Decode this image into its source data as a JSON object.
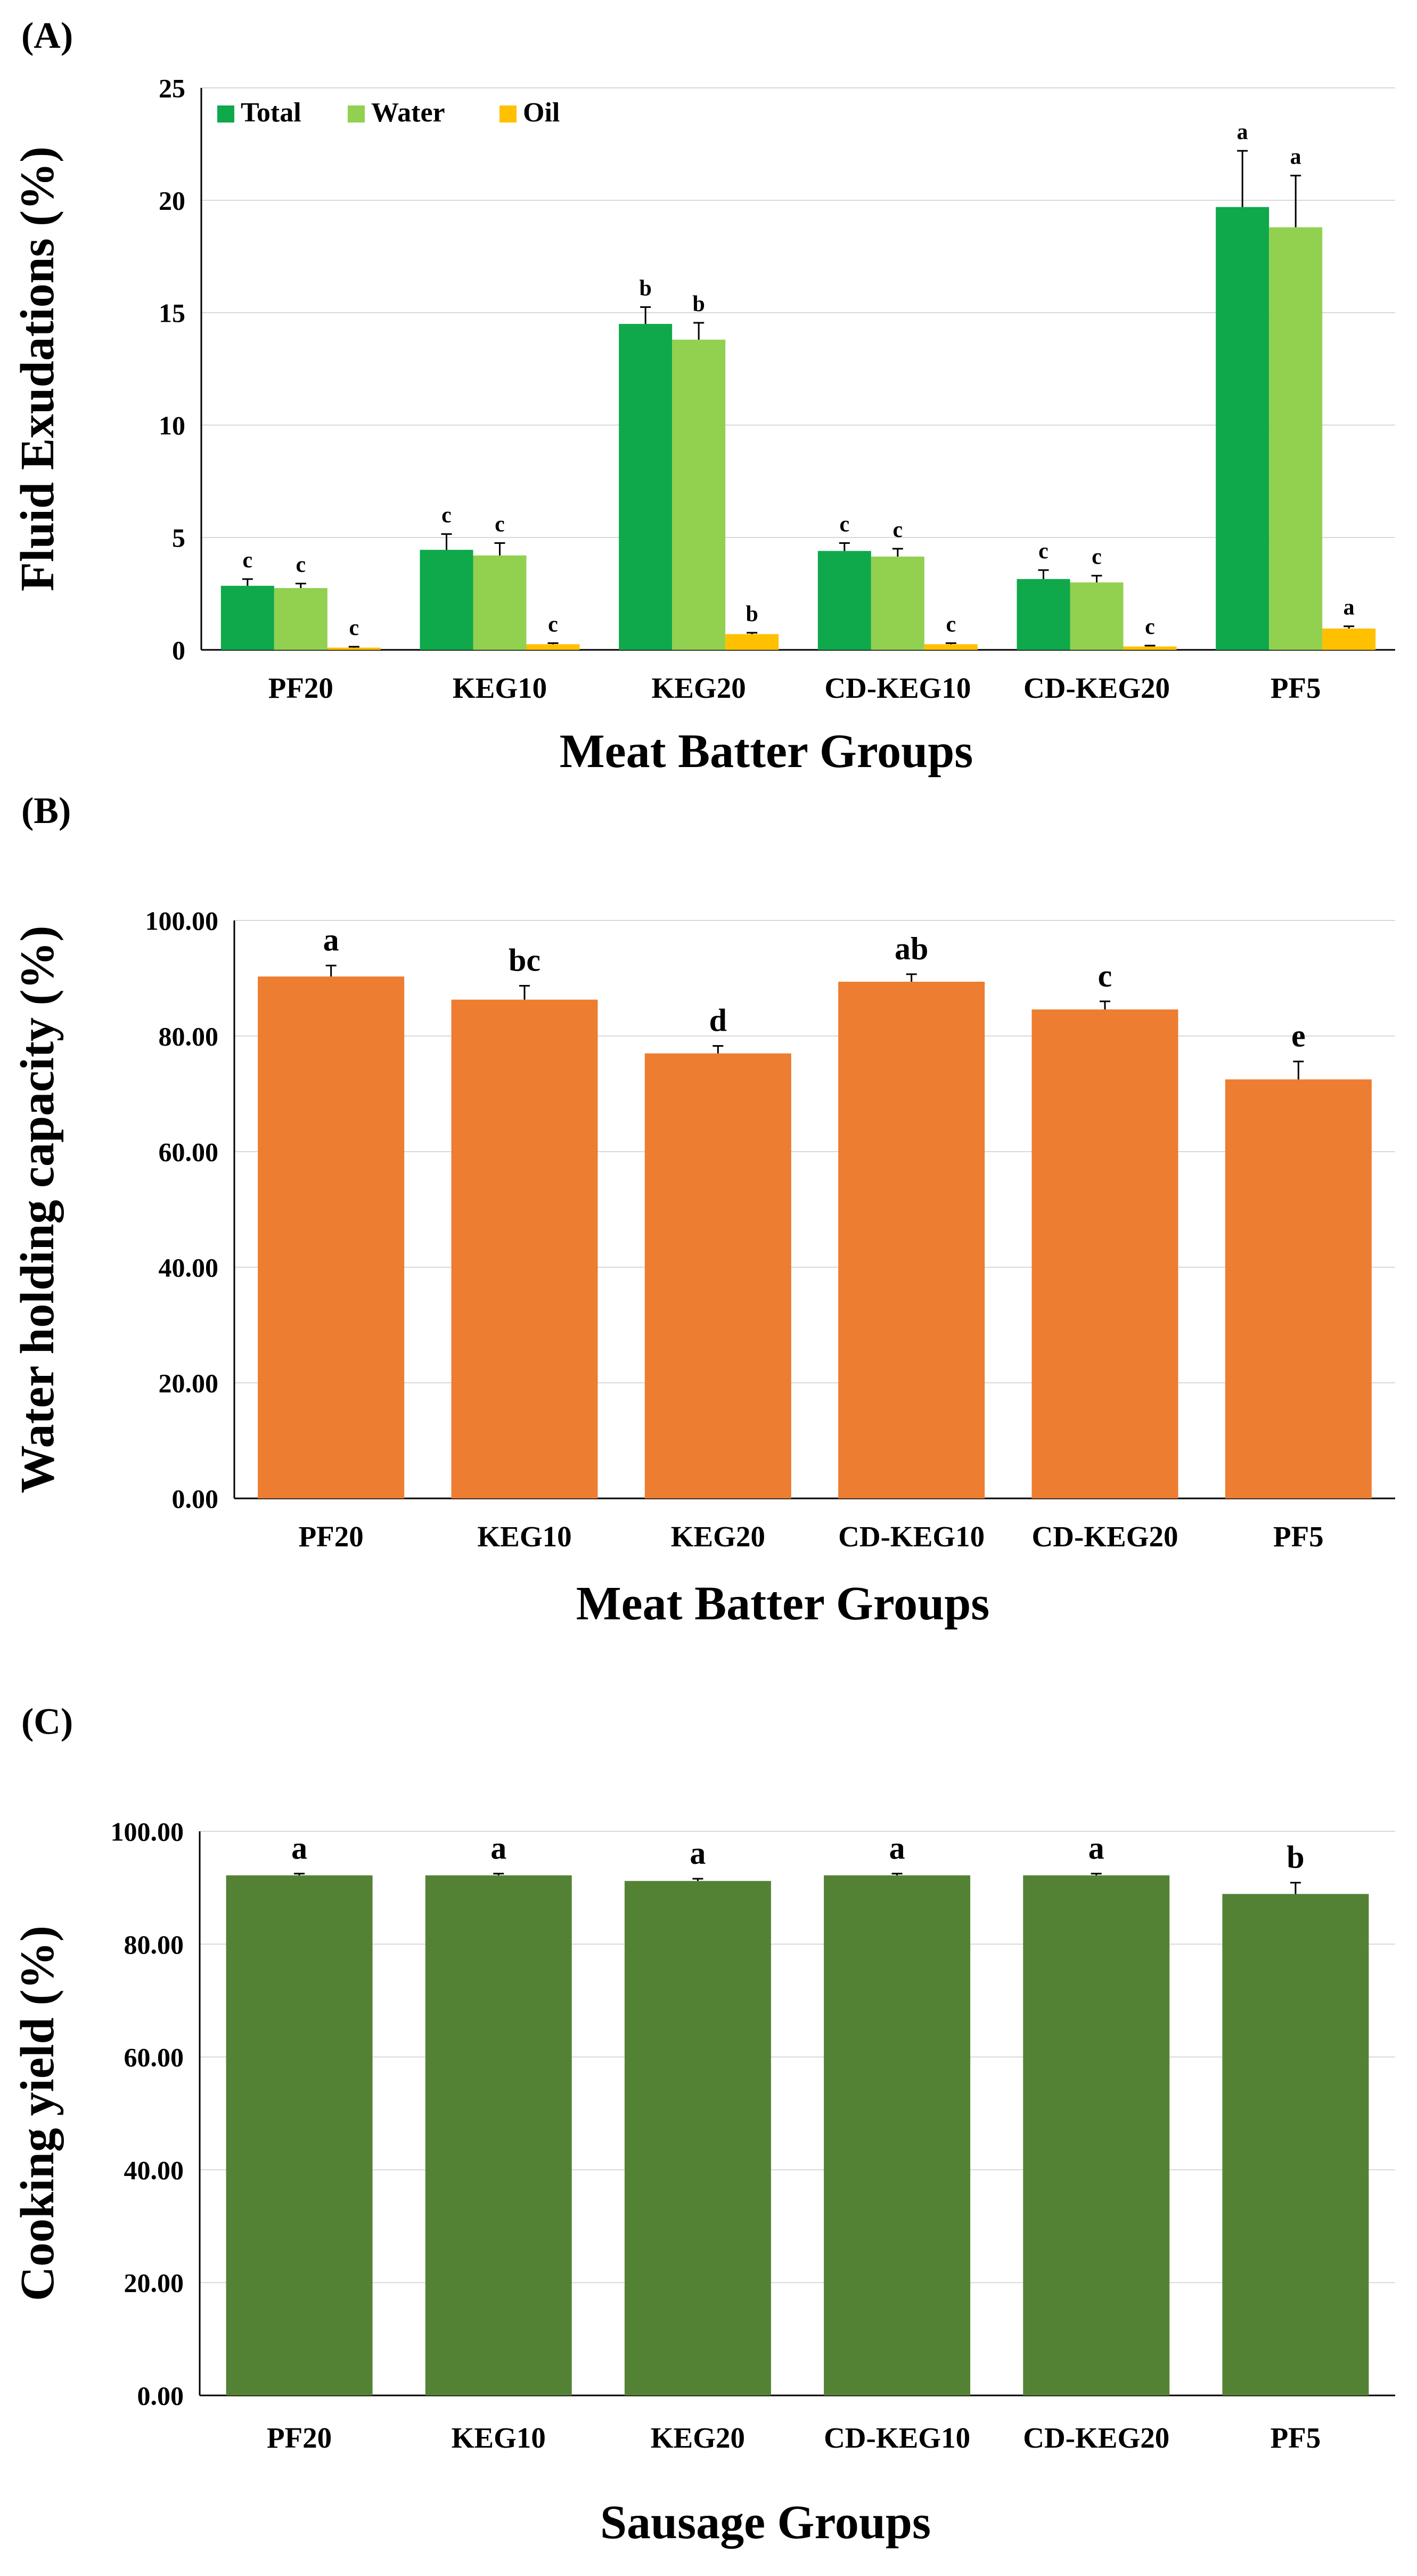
{
  "figure": {
    "panels": [
      {
        "label": "(A)"
      },
      {
        "label": "(B)"
      },
      {
        "label": "(C)"
      }
    ]
  },
  "chart_data": [
    {
      "panel": "(A)",
      "type": "bar",
      "title": "",
      "xlabel": "Meat Batter Groups",
      "ylabel": "Fluid Exudations (%)",
      "ylim": [
        0,
        25
      ],
      "yticks": [
        "0",
        "5",
        "10",
        "15",
        "20",
        "25"
      ],
      "categories": [
        "PF20",
        "KEG10",
        "KEG20",
        "CD-KEG10",
        "CD-KEG20",
        "PF5"
      ],
      "legend": {
        "placement": "top-left",
        "entries": [
          "Total",
          "Water",
          "Oil"
        ]
      },
      "gridlines": true,
      "series": [
        {
          "name": "Total",
          "color": "#0fa84b",
          "values": [
            2.85,
            4.45,
            14.5,
            4.4,
            3.15,
            19.7
          ],
          "errors": [
            0.3,
            0.7,
            0.75,
            0.35,
            0.4,
            2.5
          ],
          "labels": [
            "c",
            "c",
            "b",
            "c",
            "c",
            "a"
          ]
        },
        {
          "name": "Water",
          "color": "#92d050",
          "values": [
            2.75,
            4.2,
            13.8,
            4.15,
            3.0,
            18.8
          ],
          "errors": [
            0.2,
            0.55,
            0.75,
            0.35,
            0.3,
            2.3
          ],
          "labels": [
            "c",
            "c",
            "b",
            "c",
            "c",
            "a"
          ]
        },
        {
          "name": "Oil",
          "color": "#ffc000",
          "values": [
            0.1,
            0.25,
            0.7,
            0.25,
            0.15,
            0.95
          ],
          "errors": [
            0.04,
            0.05,
            0.06,
            0.05,
            0.04,
            0.1
          ],
          "labels": [
            "c",
            "c",
            "b",
            "c",
            "c",
            "a"
          ]
        }
      ]
    },
    {
      "panel": "(B)",
      "type": "bar",
      "title": "",
      "xlabel": "Meat Batter Groups",
      "ylabel": "Water holding capacity (%)",
      "ylim": [
        0,
        100
      ],
      "yticks": [
        "0.00",
        "20.00",
        "40.00",
        "60.00",
        "80.00",
        "100.00"
      ],
      "categories": [
        "PF20",
        "KEG10",
        "KEG20",
        "CD-KEG10",
        "CD-KEG20",
        "PF5"
      ],
      "gridlines": true,
      "series": [
        {
          "name": "Water holding capacity",
          "color": "#ed7d31",
          "values": [
            90.3,
            86.3,
            77.0,
            89.4,
            84.6,
            72.5
          ],
          "errors": [
            1.9,
            2.4,
            1.3,
            1.3,
            1.4,
            3.1
          ],
          "labels": [
            "a",
            "bc",
            "d",
            "ab",
            "c",
            "e"
          ]
        }
      ]
    },
    {
      "panel": "(C)",
      "type": "bar",
      "title": "",
      "xlabel": "Sausage Groups",
      "ylabel": "Cooking yield (%)",
      "ylim": [
        0,
        100
      ],
      "yticks": [
        "0.00",
        "20.00",
        "40.00",
        "60.00",
        "80.00",
        "100.00"
      ],
      "categories": [
        "PF20",
        "KEG10",
        "KEG20",
        "CD-KEG10",
        "CD-KEG20",
        "PF5"
      ],
      "gridlines": true,
      "series": [
        {
          "name": "Cooking yield",
          "color": "#548235",
          "values": [
            92.2,
            92.2,
            91.2,
            92.2,
            92.2,
            88.9
          ],
          "errors": [
            0.3,
            0.3,
            0.4,
            0.3,
            0.3,
            2.0
          ],
          "labels": [
            "a",
            "a",
            "a",
            "a",
            "a",
            "b"
          ]
        }
      ]
    }
  ]
}
